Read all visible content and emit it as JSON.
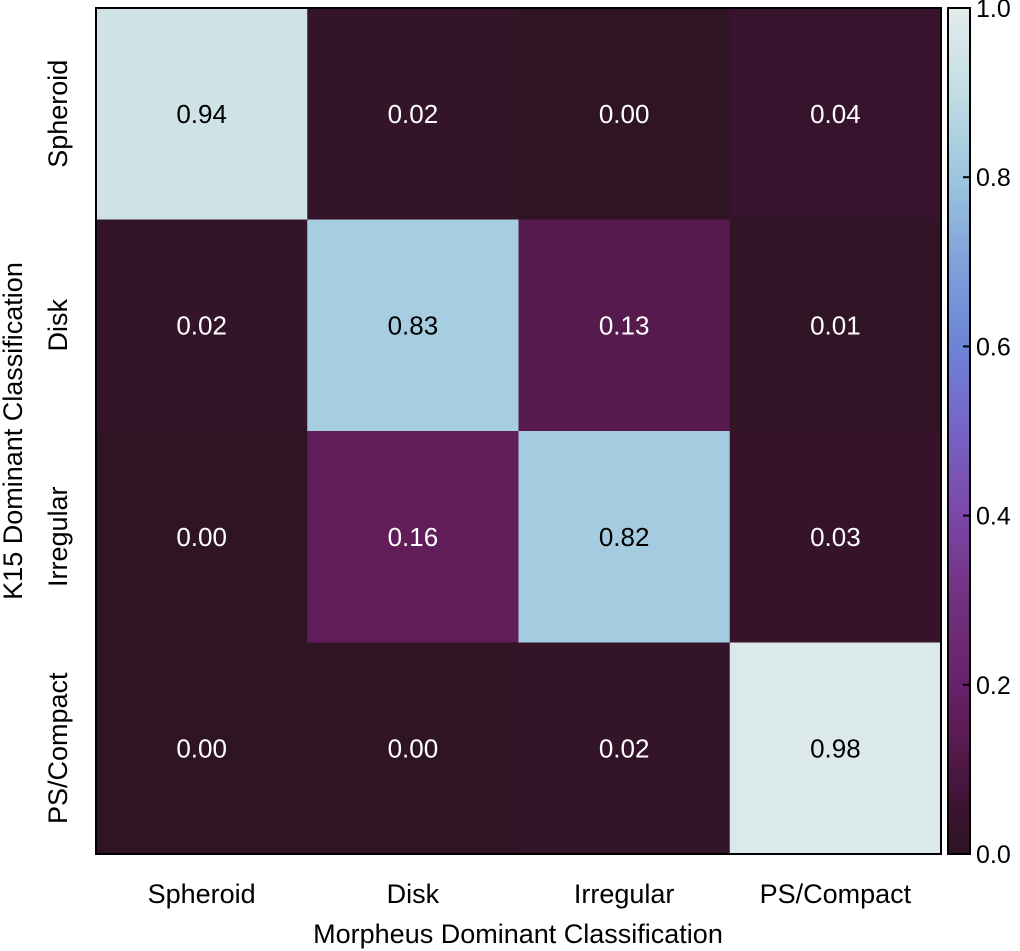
{
  "chart_data": {
    "type": "heatmap",
    "title": "",
    "xlabel": "Morpheus Dominant Classification",
    "ylabel": "K15 Dominant Classification",
    "x_categories": [
      "Spheroid",
      "Disk",
      "Irregular",
      "PS/Compact"
    ],
    "y_categories": [
      "Spheroid",
      "Disk",
      "Irregular",
      "PS/Compact"
    ],
    "values": [
      [
        0.94,
        0.02,
        0.0,
        0.04
      ],
      [
        0.02,
        0.83,
        0.13,
        0.01
      ],
      [
        0.0,
        0.16,
        0.82,
        0.03
      ],
      [
        0.0,
        0.0,
        0.02,
        0.98
      ]
    ],
    "value_labels": [
      [
        "0.94",
        "0.02",
        "0.00",
        "0.04"
      ],
      [
        "0.02",
        "0.83",
        "0.13",
        "0.01"
      ],
      [
        "0.00",
        "0.16",
        "0.82",
        "0.03"
      ],
      [
        "0.00",
        "0.00",
        "0.02",
        "0.98"
      ]
    ],
    "colorbar": {
      "range": [
        0.0,
        1.0
      ],
      "ticks": [
        0.0,
        0.2,
        0.4,
        0.6,
        0.8,
        1.0
      ],
      "tick_labels": [
        "0.0",
        "0.2",
        "0.4",
        "0.6",
        "0.8",
        "1.0"
      ],
      "colormap": "twilight (dark-to-light half)",
      "stops": [
        {
          "v": 0.0,
          "color": "#2f1424"
        },
        {
          "v": 0.05,
          "color": "#3a1330"
        },
        {
          "v": 0.15,
          "color": "#5e1c56"
        },
        {
          "v": 0.2,
          "color": "#66226a"
        },
        {
          "v": 0.3,
          "color": "#733080"
        },
        {
          "v": 0.4,
          "color": "#7a47a8"
        },
        {
          "v": 0.5,
          "color": "#7763c4"
        },
        {
          "v": 0.6,
          "color": "#6d84d6"
        },
        {
          "v": 0.7,
          "color": "#7ea2da"
        },
        {
          "v": 0.8,
          "color": "#9cc6df"
        },
        {
          "v": 0.9,
          "color": "#c2dde4"
        },
        {
          "v": 1.0,
          "color": "#e3ecec"
        }
      ]
    }
  }
}
